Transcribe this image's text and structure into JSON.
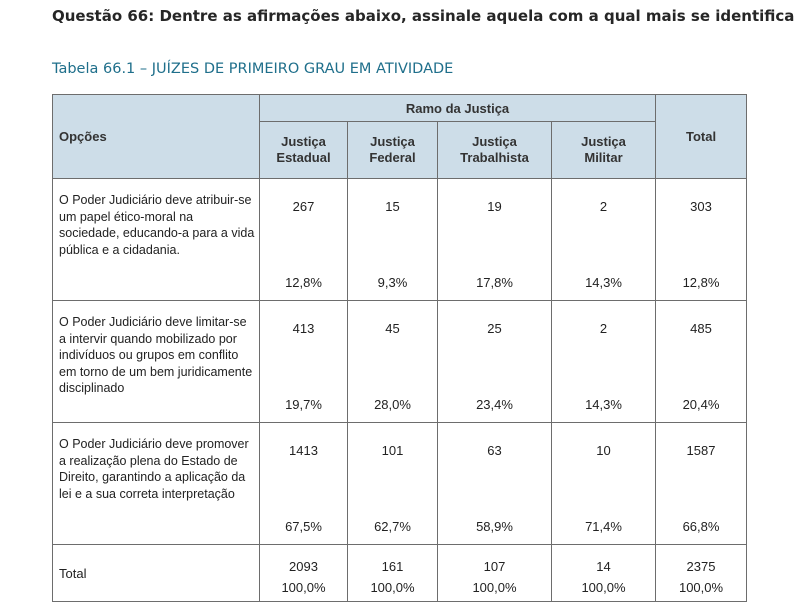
{
  "question": "Questão 66: Dentre as afirmações abaixo, assinale aquela com a qual mais se identifica",
  "caption": "Tabela 66.1 – JUÍZES DE PRIMEIRO GRAU EM ATIVIDADE",
  "header": {
    "opcoes": "Opções",
    "ramo": "Ramo da Justiça",
    "total": "Total",
    "cols": [
      [
        "Justiça",
        "Estadual"
      ],
      [
        "Justiça",
        "Federal"
      ],
      [
        "Justiça",
        "Trabalhista"
      ],
      [
        "Justiça",
        "Militar"
      ]
    ]
  },
  "rows": [
    {
      "option": "O Poder Judiciário deve atribuir-se um papel ético-moral na sociedade, educando-a para a vida pública e a cidadania.",
      "counts": [
        "267",
        "15",
        "19",
        "2",
        "303"
      ],
      "percents": [
        "12,8%",
        "9,3%",
        "17,8%",
        "14,3%",
        "12,8%"
      ]
    },
    {
      "option": "O Poder Judiciário deve limitar-se a intervir quando mobilizado por indivíduos ou grupos em conflito em torno de um bem juridicamente disciplinado",
      "counts": [
        "413",
        "45",
        "25",
        "2",
        "485"
      ],
      "percents": [
        "19,7%",
        "28,0%",
        "23,4%",
        "14,3%",
        "20,4%"
      ]
    },
    {
      "option": "O Poder Judiciário deve promover a realização plena do Estado de Direito, garantindo a aplicação da lei e a sua correta interpretação",
      "counts": [
        "1413",
        "101",
        "63",
        "10",
        "1587"
      ],
      "percents": [
        "67,5%",
        "62,7%",
        "58,9%",
        "71,4%",
        "66,8%"
      ]
    }
  ],
  "total": {
    "label": "Total",
    "counts": [
      "2093",
      "161",
      "107",
      "14",
      "2375"
    ],
    "percents": [
      "100,0%",
      "100,0%",
      "100,0%",
      "100,0%",
      "100,0%"
    ]
  }
}
